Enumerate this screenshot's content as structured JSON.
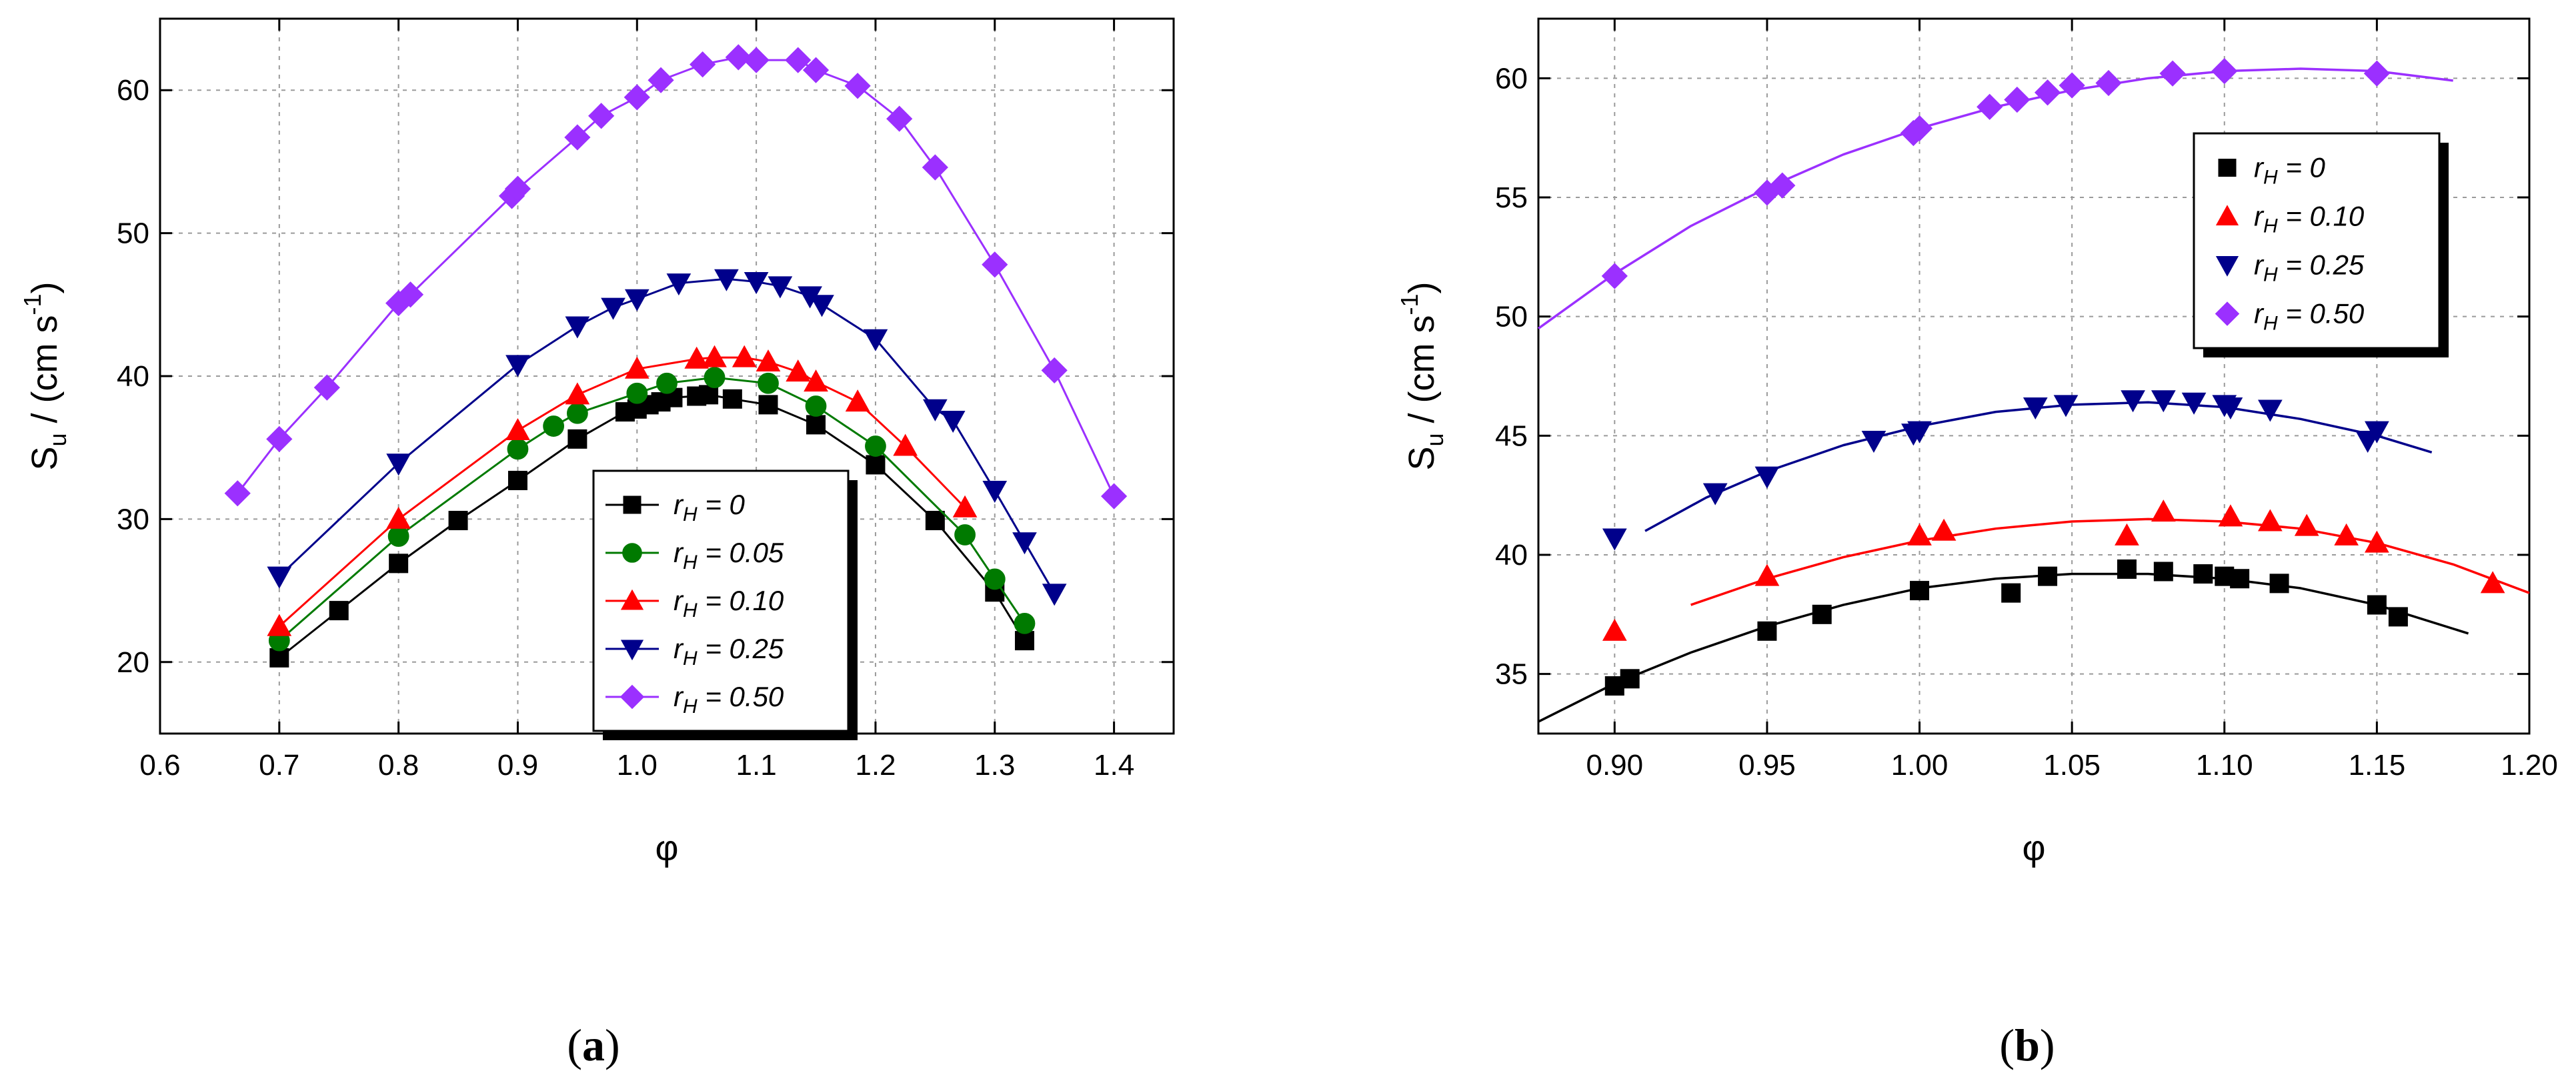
{
  "chart_data": [
    {
      "id": "a",
      "type": "line",
      "panel_label": "a",
      "xlabel": "φ",
      "ylabel_main": "S",
      "ylabel_sub": "u",
      "ylabel_rest": " / (cm s",
      "ylabel_sup": "-1",
      "ylabel_close": ")",
      "xlim": [
        0.6,
        1.45
      ],
      "ylim": [
        15,
        65
      ],
      "xticks": [
        0.6,
        0.7,
        0.8,
        0.9,
        1.0,
        1.1,
        1.2,
        1.3,
        1.4
      ],
      "xtick_labels": [
        "0.6",
        "0.7",
        "0.8",
        "0.9",
        "1.0",
        "1.1",
        "1.2",
        "1.3",
        "1.4"
      ],
      "yticks": [
        20,
        30,
        40,
        50,
        60
      ],
      "ytick_labels": [
        "20",
        "30",
        "40",
        "50",
        "60"
      ],
      "grid": true,
      "legend_position": "center-right",
      "series": [
        {
          "name_var": "r",
          "name_sub": "H",
          "name_rest": " = 0",
          "color": "#000000",
          "marker": "square",
          "x": [
            0.7,
            0.75,
            0.8,
            0.85,
            0.9,
            0.95,
            0.99,
            1.0,
            1.01,
            1.02,
            1.03,
            1.05,
            1.06,
            1.08,
            1.11,
            1.15,
            1.2,
            1.25,
            1.3,
            1.325
          ],
          "y": [
            20.3,
            23.6,
            26.9,
            29.9,
            32.7,
            35.6,
            37.5,
            37.7,
            38.0,
            38.2,
            38.5,
            38.6,
            38.7,
            38.4,
            38.0,
            36.6,
            33.8,
            29.9,
            24.9,
            21.5
          ]
        },
        {
          "name_var": "r",
          "name_sub": "H",
          "name_rest": " = 0.05",
          "color": "#007a00",
          "marker": "circle",
          "x": [
            0.7,
            0.8,
            0.9,
            0.93,
            0.95,
            1.0,
            1.025,
            1.065,
            1.11,
            1.15,
            1.2,
            1.275,
            1.3,
            1.325
          ],
          "y": [
            21.5,
            28.8,
            34.9,
            36.5,
            37.4,
            38.8,
            39.5,
            39.9,
            39.5,
            37.9,
            35.1,
            28.9,
            25.8,
            22.7
          ]
        },
        {
          "name_var": "r",
          "name_sub": "H",
          "name_rest": " = 0.10",
          "color": "#ff0000",
          "marker": "triangle-up",
          "x": [
            0.7,
            0.8,
            0.9,
            0.95,
            1.0,
            1.05,
            1.065,
            1.09,
            1.11,
            1.135,
            1.15,
            1.185,
            1.225,
            1.275
          ],
          "y": [
            22.5,
            30.0,
            36.2,
            38.7,
            40.5,
            41.2,
            41.3,
            41.3,
            41.0,
            40.3,
            39.6,
            38.2,
            35.1,
            30.8
          ]
        },
        {
          "name_var": "r",
          "name_sub": "H",
          "name_rest": " = 0.25",
          "color": "#00008b",
          "marker": "triangle-down",
          "x": [
            0.7,
            0.8,
            0.9,
            0.95,
            0.98,
            1.0,
            1.035,
            1.075,
            1.1,
            1.12,
            1.145,
            1.155,
            1.2,
            1.25,
            1.265,
            1.3,
            1.325,
            1.35
          ],
          "y": [
            26.0,
            33.9,
            40.8,
            43.5,
            44.8,
            45.4,
            46.5,
            46.8,
            46.6,
            46.3,
            45.6,
            45.0,
            42.6,
            37.7,
            36.9,
            32.0,
            28.4,
            24.8
          ]
        },
        {
          "name_var": "r",
          "name_sub": "H",
          "name_rest": " = 0.50",
          "color": "#9b30ff",
          "marker": "diamond",
          "x": [
            0.665,
            0.7,
            0.74,
            0.8,
            0.81,
            0.895,
            0.9,
            0.95,
            0.97,
            1.0,
            1.02,
            1.055,
            1.085,
            1.1,
            1.135,
            1.15,
            1.185,
            1.22,
            1.25,
            1.3,
            1.35,
            1.4
          ],
          "y": [
            31.8,
            35.6,
            39.2,
            45.1,
            45.7,
            52.6,
            53.1,
            56.7,
            58.2,
            59.5,
            60.7,
            61.8,
            62.3,
            62.1,
            62.1,
            61.4,
            60.3,
            58.0,
            54.6,
            47.8,
            40.4,
            31.6
          ]
        }
      ]
    },
    {
      "id": "b",
      "type": "scatter",
      "panel_label": "b",
      "xlabel": "φ",
      "ylabel_main": "S",
      "ylabel_sub": "u",
      "ylabel_rest": " / (cm s",
      "ylabel_sup": "-1",
      "ylabel_close": ")",
      "xlim": [
        0.875,
        1.2
      ],
      "ylim": [
        32.5,
        62.5
      ],
      "xticks": [
        0.9,
        0.95,
        1.0,
        1.05,
        1.1,
        1.15,
        1.2
      ],
      "xtick_labels": [
        "0.90",
        "0.95",
        "1.00",
        "1.05",
        "1.10",
        "1.15",
        "1.20"
      ],
      "yticks": [
        35,
        40,
        45,
        50,
        55,
        60
      ],
      "ytick_labels": [
        "35",
        "40",
        "45",
        "50",
        "55",
        "60"
      ],
      "grid": true,
      "legend_position": "top-right",
      "series": [
        {
          "name_var": "r",
          "name_sub": "H",
          "name_rest": " = 0",
          "color": "#000000",
          "marker": "square",
          "x": [
            0.9,
            0.905,
            0.95,
            0.968,
            1.0,
            1.03,
            1.042,
            1.068,
            1.08,
            1.093,
            1.1,
            1.105,
            1.118,
            1.15,
            1.157
          ],
          "y": [
            34.5,
            34.8,
            36.8,
            37.5,
            38.5,
            38.4,
            39.1,
            39.4,
            39.3,
            39.2,
            39.1,
            39.0,
            38.8,
            37.9,
            37.4
          ],
          "fit": {
            "x": [
              0.875,
              0.9,
              0.925,
              0.95,
              0.975,
              1.0,
              1.025,
              1.05,
              1.075,
              1.1,
              1.125,
              1.15,
              1.18
            ],
            "y": [
              33.0,
              34.6,
              35.9,
              37.0,
              37.9,
              38.6,
              39.0,
              39.2,
              39.2,
              39.0,
              38.6,
              37.9,
              36.7
            ]
          }
        },
        {
          "name_var": "r",
          "name_sub": "H",
          "name_rest": " = 0.10",
          "color": "#ff0000",
          "marker": "triangle-up",
          "x": [
            0.9,
            0.95,
            1.0,
            1.008,
            1.068,
            1.08,
            1.102,
            1.115,
            1.127,
            1.14,
            1.15,
            1.188
          ],
          "y": [
            36.8,
            39.1,
            40.8,
            41.0,
            40.8,
            41.8,
            41.6,
            41.4,
            41.2,
            40.8,
            40.5,
            38.8
          ],
          "fit": {
            "x": [
              0.925,
              0.95,
              0.975,
              1.0,
              1.025,
              1.05,
              1.075,
              1.1,
              1.125,
              1.15,
              1.175,
              1.2
            ],
            "y": [
              37.9,
              39.0,
              39.9,
              40.6,
              41.1,
              41.4,
              41.5,
              41.4,
              41.1,
              40.5,
              39.6,
              38.4
            ]
          }
        },
        {
          "name_var": "r",
          "name_sub": "H",
          "name_rest": " = 0.25",
          "color": "#00008b",
          "marker": "triangle-down",
          "x": [
            0.9,
            0.933,
            0.95,
            0.985,
            0.998,
            1.0,
            1.038,
            1.048,
            1.07,
            1.08,
            1.09,
            1.1,
            1.102,
            1.115,
            1.147,
            1.15
          ],
          "y": [
            40.7,
            42.6,
            43.3,
            44.8,
            45.1,
            45.2,
            46.2,
            46.3,
            46.5,
            46.5,
            46.4,
            46.3,
            46.2,
            46.1,
            44.8,
            45.2
          ],
          "fit": {
            "x": [
              0.91,
              0.93,
              0.95,
              0.975,
              1.0,
              1.025,
              1.05,
              1.075,
              1.1,
              1.125,
              1.15,
              1.168
            ],
            "y": [
              41.0,
              42.4,
              43.5,
              44.6,
              45.4,
              46.0,
              46.3,
              46.4,
              46.2,
              45.7,
              45.0,
              44.3
            ]
          }
        },
        {
          "name_var": "r",
          "name_sub": "H",
          "name_rest": " = 0.50",
          "color": "#9b30ff",
          "marker": "diamond",
          "x": [
            0.9,
            0.95,
            0.955,
            0.998,
            1.0,
            1.023,
            1.032,
            1.042,
            1.05,
            1.062,
            1.083,
            1.1,
            1.15
          ],
          "y": [
            51.7,
            55.2,
            55.5,
            57.7,
            57.9,
            58.8,
            59.1,
            59.4,
            59.7,
            59.8,
            60.2,
            60.3,
            60.2
          ],
          "fit": {
            "x": [
              0.875,
              0.9,
              0.925,
              0.95,
              0.975,
              1.0,
              1.025,
              1.05,
              1.075,
              1.1,
              1.125,
              1.15,
              1.175
            ],
            "y": [
              49.5,
              51.8,
              53.8,
              55.4,
              56.8,
              57.9,
              58.8,
              59.5,
              60.0,
              60.3,
              60.4,
              60.3,
              59.9
            ]
          }
        }
      ]
    }
  ],
  "captions": [
    {
      "open": "(",
      "label": "a",
      "close": ")"
    },
    {
      "open": "(",
      "label": "b",
      "close": ")"
    }
  ]
}
